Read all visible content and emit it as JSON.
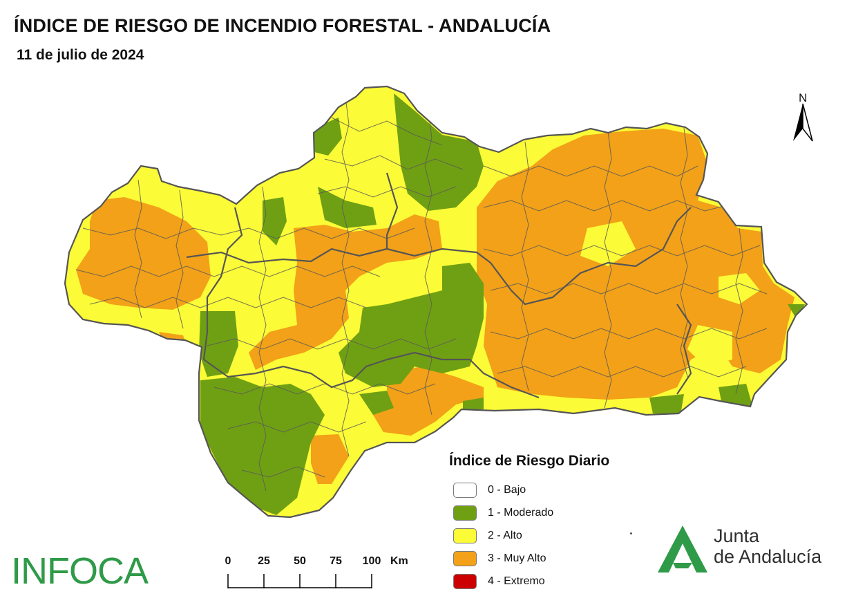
{
  "title": "ÍNDICE DE RIESGO DE INCENDIO FORESTAL - ANDALUCÍA",
  "date": "11 de julio de 2024",
  "north_label": "N",
  "legend": {
    "title": "Índice de Riesgo Diario",
    "items": [
      {
        "label": "0 - Bajo",
        "color": "#ffffff"
      },
      {
        "label": "1 - Moderado",
        "color": "#6fa013"
      },
      {
        "label": "2 - Alto",
        "color": "#fbfb37"
      },
      {
        "label": "3 - Muy Alto",
        "color": "#f2a118"
      },
      {
        "label": "4 - Extremo",
        "color": "#cc0000"
      }
    ]
  },
  "scale": {
    "ticks": [
      "0",
      "25",
      "50",
      "75",
      "100"
    ],
    "unit": "Km"
  },
  "logos": {
    "infoca": "INFOCA",
    "junta_line1": "Junta",
    "junta_line2": "de Andalucía"
  },
  "colors": {
    "moderado": "#6fa013",
    "alto": "#fbfb37",
    "muy_alto": "#f2a118",
    "border": "#5a5a5a",
    "brand_green": "#2f9a48"
  }
}
